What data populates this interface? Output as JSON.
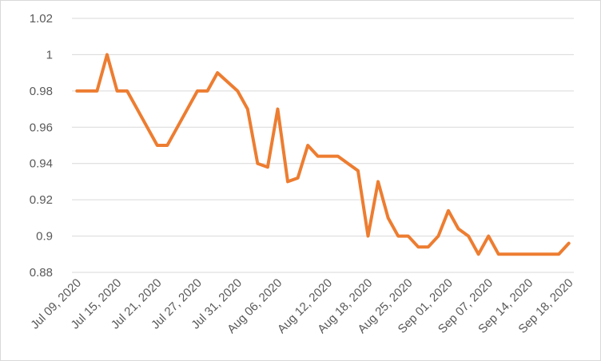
{
  "chart_data": {
    "type": "line",
    "title": "",
    "xlabel": "",
    "ylabel": "",
    "ylim": [
      0.88,
      1.02
    ],
    "y_ticks": [
      "0.88",
      "0.9",
      "0.92",
      "0.94",
      "0.96",
      "0.98",
      "1",
      "1.02"
    ],
    "x_tick_labels": [
      "Jul 09, 2020",
      "Jul 15, 2020",
      "Jul 21, 2020",
      "Jul 27, 2020",
      "Jul 31, 2020",
      "Aug 06, 2020",
      "Aug 12, 2020",
      "Aug 18, 2020",
      "Aug 25, 2020",
      "Sep 01, 2020",
      "Sep 07, 2020",
      "Sep 14, 2020",
      "Sep 18, 2020"
    ],
    "grid": true,
    "legend": "none",
    "series": [
      {
        "color": "#ED7D31",
        "values": [
          0.98,
          0.98,
          0.98,
          1.0,
          0.98,
          0.98,
          0.97,
          0.96,
          0.95,
          0.95,
          0.96,
          0.97,
          0.98,
          0.98,
          0.99,
          0.985,
          0.98,
          0.97,
          0.94,
          0.938,
          0.97,
          0.93,
          0.932,
          0.95,
          0.944,
          0.944,
          0.944,
          0.94,
          0.936,
          0.9,
          0.93,
          0.91,
          0.9,
          0.9,
          0.894,
          0.894,
          0.9,
          0.914,
          0.904,
          0.9,
          0.89,
          0.9,
          0.89,
          0.89,
          0.89,
          0.89,
          0.89,
          0.89,
          0.89,
          0.896
        ]
      }
    ]
  }
}
